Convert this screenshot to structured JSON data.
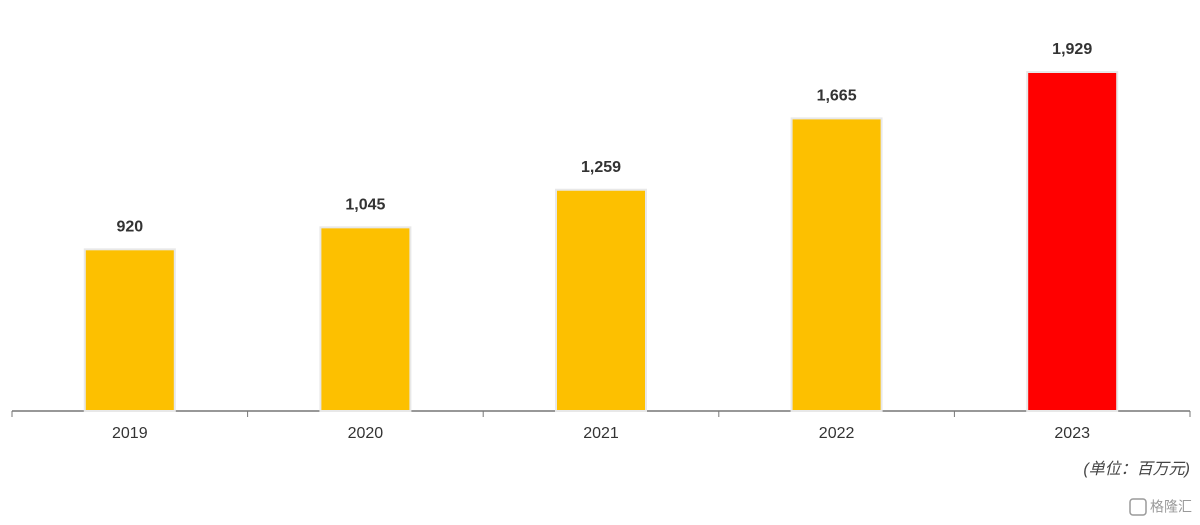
{
  "chart_data": {
    "type": "bar",
    "categories": [
      "2019",
      "2020",
      "2021",
      "2022",
      "2023"
    ],
    "values": [
      920,
      1045,
      1259,
      1665,
      1929
    ],
    "value_labels": [
      "920",
      "1,045",
      "1,259",
      "1,665",
      "1,929"
    ],
    "colors": [
      "#fdc000",
      "#fdc000",
      "#fdc000",
      "#fdc000",
      "#ff0000"
    ],
    "unit_note": "(单位：百万元)",
    "watermark": "格隆汇"
  }
}
